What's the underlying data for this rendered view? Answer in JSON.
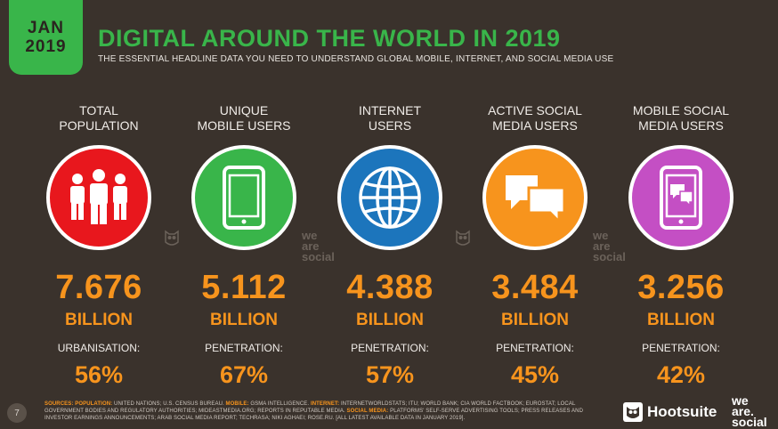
{
  "header": {
    "badge_month": "JAN",
    "badge_year": "2019",
    "title": "DIGITAL AROUND THE WORLD IN 2019",
    "subtitle": "THE ESSENTIAL HEADLINE DATA YOU NEED TO UNDERSTAND GLOBAL MOBILE, INTERNET, AND SOCIAL MEDIA USE"
  },
  "stats": [
    {
      "label_line1": "TOTAL",
      "label_line2": "POPULATION",
      "value": "7.676",
      "unit": "BILLION",
      "metric_label": "URBANISATION:",
      "metric_value": "56%",
      "color": "#e8171d",
      "icon": "people-icon"
    },
    {
      "label_line1": "UNIQUE",
      "label_line2": "MOBILE USERS",
      "value": "5.112",
      "unit": "BILLION",
      "metric_label": "PENETRATION:",
      "metric_value": "67%",
      "color": "#39b54a",
      "icon": "mobile-phone-icon"
    },
    {
      "label_line1": "INTERNET",
      "label_line2": "USERS",
      "value": "4.388",
      "unit": "BILLION",
      "metric_label": "PENETRATION:",
      "metric_value": "57%",
      "color": "#1c75bc",
      "icon": "globe-icon"
    },
    {
      "label_line1": "ACTIVE SOCIAL",
      "label_line2": "MEDIA USERS",
      "value": "3.484",
      "unit": "BILLION",
      "metric_label": "PENETRATION:",
      "metric_value": "45%",
      "color": "#f7941d",
      "icon": "chat-bubbles-icon"
    },
    {
      "label_line1": "MOBILE SOCIAL",
      "label_line2": "MEDIA USERS",
      "value": "3.256",
      "unit": "BILLION",
      "metric_label": "PENETRATION:",
      "metric_value": "42%",
      "color": "#c44fc4",
      "icon": "phone-chat-icon"
    }
  ],
  "watermarks": {
    "we": "we",
    "are": "are",
    "social": "social"
  },
  "footer": {
    "page_number": "7",
    "sources_label": "SOURCES:",
    "src_population_label": "POPULATION:",
    "src_population_text": " UNITED NATIONS; U.S. CENSUS BUREAU. ",
    "src_mobile_label": "MOBILE:",
    "src_mobile_text": " GSMA INTELLIGENCE. ",
    "src_internet_label": "INTERNET:",
    "src_internet_text": " INTERNETWORLDSTATS; ITU; WORLD BANK; CIA WORLD FACTBOOK; EUROSTAT; LOCAL GOVERNMENT BODIES AND REGULATORY AUTHORITIES; MIDEASTMEDIA.ORG; REPORTS IN REPUTABLE MEDIA. ",
    "src_social_label": "SOCIAL MEDIA:",
    "src_social_text": " PLATFORMS' SELF-SERVE ADVERTISING TOOLS; PRESS RELEASES AND INVESTOR EARNINGS ANNOUNCEMENTS; ARAB SOCIAL MEDIA REPORT; TECHRASA; NIKI AGHAEI; ROSE.RU. [ALL LATEST AVAILABLE DATA IN JANUARY 2019].",
    "hootsuite": "Hootsuite",
    "was_we": "we",
    "was_are": "are.",
    "was_social": "social"
  }
}
